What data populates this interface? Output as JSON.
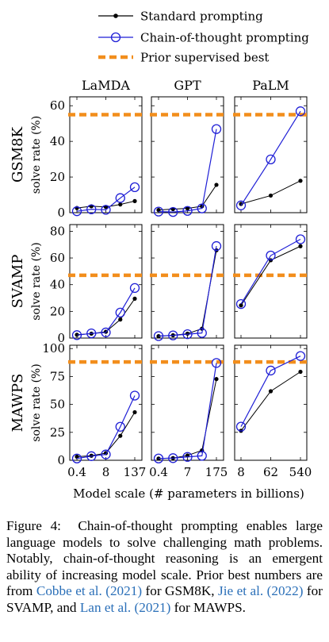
{
  "chart_data": {
    "type": "line",
    "legend": {
      "placement": "top-right",
      "entries": [
        {
          "key": "standard",
          "label": "Standard prompting",
          "color": "#000000",
          "marker": "filled-dot"
        },
        {
          "key": "cot",
          "label": "Chain-of-thought prompting",
          "color": "#1f1fd6",
          "marker": "open-circle"
        },
        {
          "key": "prior",
          "label": "Prior supervised best",
          "color": "#f28e1c",
          "style": "dashed"
        }
      ]
    },
    "columns": [
      "LaMDA",
      "GPT",
      "PaLM"
    ],
    "rows": [
      {
        "dataset": "GSM8K",
        "ylabel": "solve rate (%)",
        "ylim": [
          0,
          65
        ],
        "yticks": [
          0,
          20,
          40,
          60
        ],
        "prior_best": 55
      },
      {
        "dataset": "SVAMP",
        "ylabel": "solve rate (%)",
        "ylim": [
          0,
          85
        ],
        "yticks": [
          0,
          20,
          40,
          60,
          80
        ],
        "prior_best": 47
      },
      {
        "dataset": "MAWPS",
        "ylabel": "solve rate (%)",
        "ylim": [
          0,
          103
        ],
        "yticks": [
          0,
          25,
          50,
          75,
          100
        ],
        "prior_best": 88
      }
    ],
    "xticks": {
      "LaMDA": {
        "labels": [
          "0.4",
          "8",
          "137"
        ],
        "positions": [
          0,
          2,
          4
        ]
      },
      "GPT": {
        "labels": [
          "0.4",
          "7",
          "175"
        ],
        "positions": [
          0,
          2,
          4
        ]
      },
      "PaLM": {
        "labels": [
          "8",
          "62",
          "540"
        ],
        "positions": [
          0,
          1,
          2
        ]
      }
    },
    "xlabel": "Model scale (# parameters in billions)",
    "panels": [
      {
        "row": "GSM8K",
        "model": "LaMDA",
        "standard": [
          2.6,
          3.6,
          3.2,
          4.6,
          6.5
        ],
        "cot": [
          0.8,
          1.9,
          1.6,
          8.2,
          14.3
        ]
      },
      {
        "row": "GSM8K",
        "model": "GPT",
        "standard": [
          1.5,
          2.0,
          2.4,
          3.6,
          15.6
        ],
        "cot": [
          0.6,
          0.4,
          1.0,
          2.4,
          46.9
        ]
      },
      {
        "row": "GSM8K",
        "model": "PaLM",
        "standard": [
          4.9,
          9.6,
          17.9
        ],
        "cot": [
          4.1,
          29.9,
          56.9
        ]
      },
      {
        "row": "SVAMP",
        "model": "LaMDA",
        "standard": [
          2.5,
          3.3,
          4.7,
          13.9,
          29.5
        ],
        "cot": [
          2.2,
          3.5,
          4.2,
          19.1,
          37.5
        ]
      },
      {
        "row": "SVAMP",
        "model": "GPT",
        "standard": [
          1.4,
          2.1,
          3.3,
          7.0,
          65.7
        ],
        "cot": [
          1.5,
          2.0,
          2.9,
          3.8,
          68.9
        ]
      },
      {
        "row": "SVAMP",
        "model": "PaLM",
        "standard": [
          24.5,
          58.3,
          68.8
        ],
        "cot": [
          25.5,
          61.8,
          74.0
        ]
      },
      {
        "row": "MAWPS",
        "model": "LaMDA",
        "standard": [
          3.2,
          4.1,
          6.4,
          21.9,
          43.0
        ],
        "cot": [
          1.6,
          3.7,
          5.2,
          30.0,
          57.9
        ]
      },
      {
        "row": "MAWPS",
        "model": "GPT",
        "standard": [
          1.5,
          2.0,
          4.3,
          8.8,
          72.7
        ],
        "cot": [
          1.6,
          1.9,
          3.0,
          4.0,
          87.1
        ]
      },
      {
        "row": "MAWPS",
        "model": "PaLM",
        "standard": [
          26.4,
          61.8,
          79.2
        ],
        "cot": [
          30.1,
          80.3,
          93.3
        ]
      }
    ]
  },
  "caption": {
    "label": "Figure 4:",
    "part1": "Chain-of-thought prompting enables large language models to solve challenging math problems. Notably, chain-of-thought reasoning is an emergent ability of increasing model scale. Prior best numbers are from ",
    "cite1": "Cobbe et al. (2021)",
    "part2": " for GSM8K, ",
    "cite2": "Jie et al. (2022)",
    "part3": " for SVAMP, and ",
    "cite3": "Lan et al. (2021)",
    "part4": " for MAWPS."
  }
}
